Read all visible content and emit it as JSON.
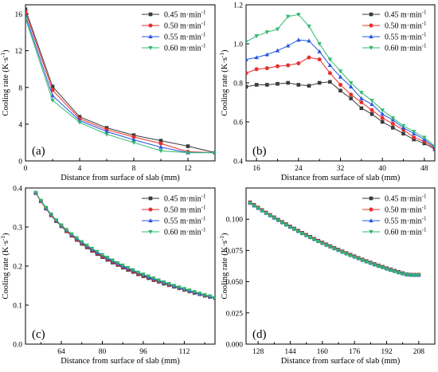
{
  "figure": {
    "panels": [
      "(a)",
      "(b)",
      "(c)",
      "(d)"
    ]
  },
  "chart_data": [
    {
      "panel": "(a)",
      "type": "line",
      "xlabel": "Distance from surface of slab (mm)",
      "ylabel": "Cooling rate (K·s-1)",
      "xlim": [
        0,
        14
      ],
      "ylim": [
        0,
        17
      ],
      "xticks": [
        0,
        2,
        4,
        6,
        8,
        10,
        12,
        14
      ],
      "xtick_labels": [
        "0",
        "",
        "4",
        "",
        "8",
        "",
        "12",
        ""
      ],
      "yticks": [
        0,
        4,
        8,
        12,
        16
      ],
      "grid": false,
      "legend": "top-right",
      "x": [
        0,
        2,
        4,
        6,
        8,
        10,
        12,
        14
      ],
      "series": [
        {
          "name": "0.45 m·min-1",
          "color": "#3a3a3a",
          "marker": "square",
          "values": [
            16.5,
            8.1,
            4.8,
            3.6,
            2.8,
            2.2,
            1.6,
            0.9
          ]
        },
        {
          "name": "0.50 m·min-1",
          "color": "#e8302c",
          "marker": "circle",
          "values": [
            16.2,
            7.7,
            4.6,
            3.4,
            2.6,
            1.9,
            1.0,
            0.9
          ]
        },
        {
          "name": "0.55 m·min-1",
          "color": "#2456e0",
          "marker": "triangle-up",
          "values": [
            15.8,
            7.1,
            4.4,
            3.2,
            2.3,
            1.5,
            0.9,
            0.9
          ]
        },
        {
          "name": "0.60 m·min-1",
          "color": "#2fb86e",
          "marker": "triangle-down",
          "values": [
            15.5,
            6.6,
            4.2,
            2.9,
            2.0,
            1.1,
            0.9,
            0.9
          ]
        }
      ]
    },
    {
      "panel": "(b)",
      "type": "line",
      "xlabel": "Distance from surface of slab (mm)",
      "ylabel": "Cooling rate (K·s-1)",
      "xlim": [
        14,
        50
      ],
      "ylim": [
        0.4,
        1.2
      ],
      "xticks": [
        16,
        20,
        24,
        28,
        32,
        36,
        40,
        44,
        48
      ],
      "xtick_labels": [
        "16",
        "",
        "24",
        "",
        "32",
        "",
        "40",
        "",
        "48"
      ],
      "yticks": [
        0.4,
        0.6,
        0.8,
        1.0,
        1.2
      ],
      "ytick_labels": [
        "0.4",
        "0.6",
        "0.8",
        "1.0",
        "1.2"
      ],
      "grid": false,
      "legend": "top-right",
      "x": [
        14,
        16,
        18,
        20,
        22,
        24,
        26,
        28,
        30,
        32,
        34,
        36,
        38,
        40,
        42,
        44,
        46,
        48,
        50
      ],
      "series": [
        {
          "name": "0.45 m·min-1",
          "color": "#3a3a3a",
          "marker": "square",
          "values": [
            0.78,
            0.79,
            0.79,
            0.795,
            0.8,
            0.79,
            0.785,
            0.8,
            0.805,
            0.76,
            0.72,
            0.67,
            0.64,
            0.6,
            0.57,
            0.54,
            0.51,
            0.49,
            0.46
          ]
        },
        {
          "name": "0.50 m·min-1",
          "color": "#e8302c",
          "marker": "circle",
          "values": [
            0.85,
            0.87,
            0.875,
            0.885,
            0.89,
            0.9,
            0.93,
            0.92,
            0.85,
            0.79,
            0.74,
            0.7,
            0.66,
            0.62,
            0.59,
            0.56,
            0.52,
            0.5,
            0.465
          ]
        },
        {
          "name": "0.55 m·min-1",
          "color": "#2456e0",
          "marker": "triangle-up",
          "values": [
            0.92,
            0.93,
            0.945,
            0.965,
            0.99,
            1.02,
            1.015,
            0.96,
            0.89,
            0.83,
            0.78,
            0.72,
            0.69,
            0.64,
            0.61,
            0.57,
            0.54,
            0.51,
            0.47
          ]
        },
        {
          "name": "0.60 m·min-1",
          "color": "#2fb86e",
          "marker": "triangle-down",
          "values": [
            1.01,
            1.04,
            1.06,
            1.075,
            1.14,
            1.15,
            1.09,
            1.0,
            0.92,
            0.86,
            0.8,
            0.75,
            0.71,
            0.66,
            0.62,
            0.58,
            0.55,
            0.52,
            0.475
          ]
        }
      ]
    },
    {
      "panel": "(c)",
      "type": "line",
      "xlabel": "Distance from surface of slab (mm)",
      "ylabel": "Cooling rate (K·s-1)",
      "xlim": [
        50,
        124
      ],
      "ylim": [
        0.0,
        0.4
      ],
      "xticks": [
        56,
        64,
        72,
        80,
        88,
        96,
        104,
        112,
        120
      ],
      "xtick_labels": [
        "",
        "64",
        "",
        "80",
        "",
        "96",
        "",
        "112",
        ""
      ],
      "yticks": [
        0.0,
        0.1,
        0.2,
        0.3,
        0.4
      ],
      "ytick_labels": [
        "0.0",
        "0.1",
        "0.2",
        "0.3",
        "0.4"
      ],
      "grid": false,
      "legend": "top-right",
      "x": [
        54,
        56,
        58,
        60,
        62,
        64,
        66,
        68,
        70,
        72,
        74,
        76,
        78,
        80,
        82,
        84,
        86,
        88,
        90,
        92,
        94,
        96,
        98,
        100,
        102,
        104,
        106,
        108,
        110,
        112,
        114,
        116,
        118,
        120,
        122,
        124
      ],
      "series": [
        {
          "name": "0.45 m·min-1",
          "color": "#3a3a3a",
          "marker": "square",
          "values": [
            0.387,
            0.366,
            0.347,
            0.33,
            0.315,
            0.302,
            0.289,
            0.278,
            0.267,
            0.257,
            0.248,
            0.239,
            0.231,
            0.223,
            0.216,
            0.209,
            0.203,
            0.196,
            0.19,
            0.185,
            0.179,
            0.174,
            0.169,
            0.164,
            0.16,
            0.155,
            0.151,
            0.147,
            0.143,
            0.139,
            0.135,
            0.131,
            0.128,
            0.124,
            0.121,
            0.118
          ]
        },
        {
          "name": "0.50 m·min-1",
          "color": "#e8302c",
          "marker": "circle",
          "values": [
            0.387,
            0.366,
            0.348,
            0.331,
            0.316,
            0.303,
            0.29,
            0.279,
            0.268,
            0.259,
            0.25,
            0.241,
            0.233,
            0.225,
            0.218,
            0.211,
            0.205,
            0.198,
            0.192,
            0.187,
            0.181,
            0.176,
            0.171,
            0.166,
            0.161,
            0.157,
            0.152,
            0.148,
            0.144,
            0.14,
            0.136,
            0.132,
            0.129,
            0.125,
            0.122,
            0.119
          ]
        },
        {
          "name": "0.55 m·min-1",
          "color": "#2456e0",
          "marker": "triangle-up",
          "values": [
            0.388,
            0.367,
            0.349,
            0.332,
            0.317,
            0.304,
            0.292,
            0.281,
            0.27,
            0.261,
            0.252,
            0.243,
            0.235,
            0.228,
            0.22,
            0.213,
            0.207,
            0.2,
            0.194,
            0.189,
            0.183,
            0.178,
            0.172,
            0.168,
            0.163,
            0.158,
            0.154,
            0.149,
            0.145,
            0.141,
            0.137,
            0.133,
            0.129,
            0.126,
            0.122,
            0.119
          ]
        },
        {
          "name": "0.60 m·min-1",
          "color": "#2fb86e",
          "marker": "triangle-down",
          "values": [
            0.388,
            0.368,
            0.35,
            0.333,
            0.318,
            0.305,
            0.293,
            0.282,
            0.272,
            0.262,
            0.253,
            0.245,
            0.237,
            0.229,
            0.222,
            0.215,
            0.208,
            0.202,
            0.196,
            0.19,
            0.184,
            0.179,
            0.174,
            0.169,
            0.164,
            0.159,
            0.155,
            0.15,
            0.146,
            0.142,
            0.138,
            0.134,
            0.13,
            0.126,
            0.123,
            0.119
          ]
        }
      ]
    },
    {
      "panel": "(d)",
      "type": "line",
      "xlabel": "Distance from surface of slab (mm)",
      "ylabel": "Cooling rate (K·s-1)",
      "xlim": [
        122,
        216
      ],
      "ylim": [
        0.0,
        0.125
      ],
      "xticks": [
        128,
        136,
        144,
        152,
        160,
        168,
        176,
        184,
        192,
        200,
        208
      ],
      "xtick_labels": [
        "128",
        "",
        "144",
        "",
        "160",
        "",
        "176",
        "",
        "192",
        "",
        "208"
      ],
      "yticks": [
        0.0,
        0.025,
        0.05,
        0.075,
        0.1
      ],
      "ytick_labels": [
        "0.000",
        "0.025",
        "0.050",
        "0.075",
        "0.100"
      ],
      "grid": false,
      "legend": "top-right",
      "x": [
        124,
        126,
        128,
        130,
        132,
        134,
        136,
        138,
        140,
        142,
        144,
        146,
        148,
        150,
        152,
        154,
        156,
        158,
        160,
        162,
        164,
        166,
        168,
        170,
        172,
        174,
        176,
        178,
        180,
        182,
        184,
        186,
        188,
        190,
        192,
        194,
        196,
        198,
        200,
        202,
        204,
        206,
        208
      ],
      "series": [
        {
          "name": "0.45 m·min-1",
          "color": "#3a3a3a",
          "marker": "square",
          "values": [
            0.1135,
            0.1114,
            0.1093,
            0.1073,
            0.1053,
            0.1034,
            0.1015,
            0.0996,
            0.0978,
            0.096,
            0.0942,
            0.0925,
            0.0908,
            0.0891,
            0.0875,
            0.0859,
            0.0843,
            0.0828,
            0.0813,
            0.0798,
            0.0784,
            0.077,
            0.0756,
            0.0742,
            0.0729,
            0.0716,
            0.0703,
            0.069,
            0.0677,
            0.0665,
            0.0653,
            0.0641,
            0.063,
            0.0619,
            0.0608,
            0.0598,
            0.0588,
            0.0578,
            0.0568,
            0.0559,
            0.0556,
            0.0555,
            0.0555
          ]
        },
        {
          "name": "0.50 m·min-1",
          "color": "#e8302c",
          "marker": "circle",
          "values": [
            0.1132,
            0.1111,
            0.1091,
            0.1071,
            0.1051,
            0.1032,
            0.1013,
            0.0994,
            0.0976,
            0.0958,
            0.094,
            0.0923,
            0.0906,
            0.0889,
            0.0873,
            0.0857,
            0.0841,
            0.0826,
            0.0811,
            0.0796,
            0.0782,
            0.0768,
            0.0754,
            0.074,
            0.0727,
            0.0714,
            0.0701,
            0.0688,
            0.0675,
            0.0663,
            0.0651,
            0.0639,
            0.0628,
            0.0617,
            0.0606,
            0.0596,
            0.0586,
            0.0576,
            0.0566,
            0.0558,
            0.0555,
            0.0554,
            0.0554
          ]
        },
        {
          "name": "0.55 m·min-1",
          "color": "#2456e0",
          "marker": "triangle-up",
          "values": [
            0.113,
            0.1109,
            0.1089,
            0.1069,
            0.1049,
            0.103,
            0.1011,
            0.0992,
            0.0974,
            0.0956,
            0.0938,
            0.0921,
            0.0904,
            0.0887,
            0.0871,
            0.0855,
            0.0839,
            0.0824,
            0.0809,
            0.0794,
            0.078,
            0.0766,
            0.0752,
            0.0738,
            0.0725,
            0.0712,
            0.0699,
            0.0686,
            0.0673,
            0.0661,
            0.0649,
            0.0637,
            0.0626,
            0.0615,
            0.0604,
            0.0594,
            0.0584,
            0.0574,
            0.0565,
            0.0557,
            0.0554,
            0.0553,
            0.0553
          ]
        },
        {
          "name": "0.60 m·min-1",
          "color": "#2fb86e",
          "marker": "triangle-down",
          "values": [
            0.1128,
            0.1107,
            0.1087,
            0.1067,
            0.1047,
            0.1028,
            0.1009,
            0.099,
            0.0972,
            0.0954,
            0.0936,
            0.0919,
            0.0902,
            0.0885,
            0.0869,
            0.0853,
            0.0837,
            0.0822,
            0.0807,
            0.0792,
            0.0778,
            0.0764,
            0.075,
            0.0736,
            0.0723,
            0.071,
            0.0697,
            0.0684,
            0.0671,
            0.0659,
            0.0647,
            0.0635,
            0.0624,
            0.0613,
            0.0602,
            0.0592,
            0.0582,
            0.0572,
            0.0563,
            0.0556,
            0.0553,
            0.0552,
            0.0552
          ]
        }
      ]
    }
  ]
}
